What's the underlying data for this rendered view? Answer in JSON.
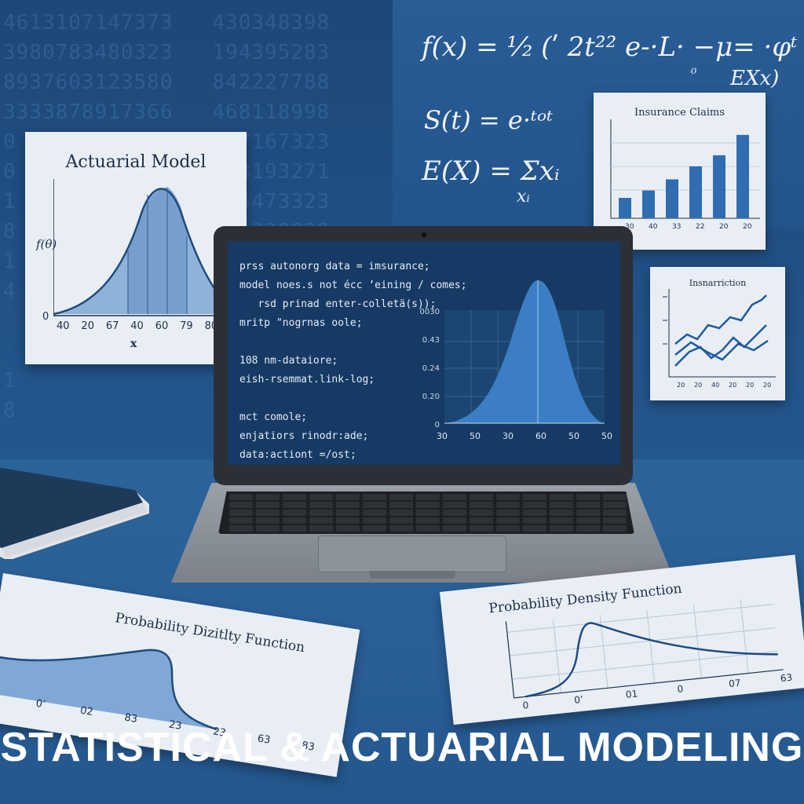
{
  "background_digits": [
    "4613107147373   430348398",
    "3980783480323   194395283",
    "8937603123580   842227788",
    "3333878917366   468118998",
    "0               117167323",
    "0               163193271",
    "1               665473323",
    "8               645338828",
    "1               773213278",
    "4               833880293",
    "              5548335883",
    "              3600355888",
    "1               123583038",
    "8               386531230"
  ],
  "formulas": {
    "pdf": "f(x) = ¹⁄₂ (ʹ 2t²²  e-·L· −μ= ·φᵗ",
    "pdf_tail": "EXx)",
    "pdf_frac": "₀",
    "survival": "S(t) = e·ᵗᵒᵗ",
    "expectation": "E(X) = Σxᵢ",
    "expectation_sub": "xᵢ"
  },
  "papers": {
    "actuarial_model": {
      "title": "Actuarial Model",
      "ylabel": "f(θ)",
      "zero": "0",
      "xticks": [
        "40",
        "20",
        "67",
        "40",
        "60",
        "79",
        "80",
        "30"
      ],
      "xlabel": "x"
    },
    "insurance_claims": {
      "title": "Insurance Claims",
      "xticks": [
        "30",
        "40",
        "33",
        "22",
        "20",
        "20"
      ]
    },
    "insurance_line": {
      "title": "Insnarriction",
      "xticks": [
        "20",
        "20",
        "40",
        "20",
        "20",
        "20"
      ]
    },
    "pdf_left": {
      "title": "Probability Dizitlty Function",
      "xticks": [
        "0",
        "0’",
        "02",
        "83",
        "23",
        "23",
        "63",
        "83"
      ]
    },
    "pdf_right": {
      "title": "Probability Density Function",
      "xticks": [
        "0",
        "0’",
        "01",
        "0",
        "07",
        "63"
      ]
    }
  },
  "laptop": {
    "code_lines": [
      "prss autonorg data = imsurance;",
      "model noes.s not écc ’eining / comes;",
      "   rsd prinad enter-colletä(s));",
      "mritp \"nogrnas oole;",
      "",
      "108 nm-dataiore;",
      "eish-rsemmat.link-log;",
      "",
      "mct comole;",
      "enjatiors rinodr:ade;",
      "data:actiont =/ost;"
    ],
    "chart_yticks": [
      "0030",
      "0.43",
      "0.24",
      "0.20",
      "0"
    ],
    "chart_xticks": [
      "30",
      "50",
      "30",
      "60",
      "50",
      "50"
    ]
  },
  "headline": "STATISTICAL & ACTUARIAL MODELING",
  "colors": {
    "wall": "#1d4777",
    "desk": "#2b6399",
    "paper": "#e9eef5",
    "chart_blue": "#2f6db0",
    "screen": "#163a63"
  }
}
